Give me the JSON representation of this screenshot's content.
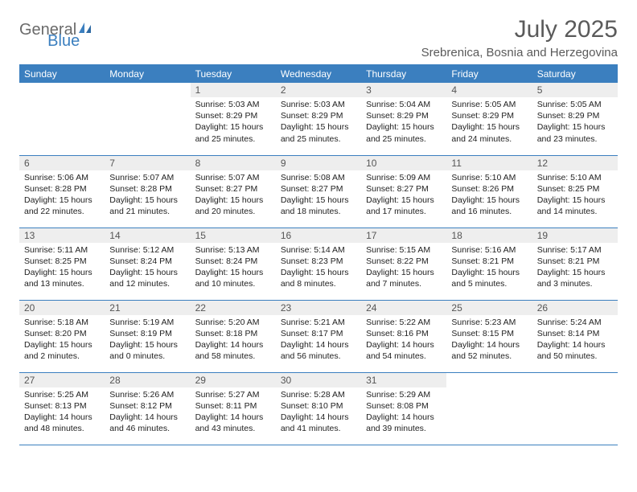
{
  "brand": {
    "part1": "General",
    "part2": "Blue",
    "text_color": "#6a6a6a",
    "accent_color": "#3b7fbf"
  },
  "title": "July 2025",
  "location": "Srebrenica, Bosnia and Herzegovina",
  "colors": {
    "header_bg": "#3b7fbf",
    "header_text": "#ffffff",
    "daynum_bg": "#eeeeee",
    "daynum_text": "#555555",
    "border": "#3b7fbf",
    "body_text": "#222222",
    "title_text": "#5a5a5a"
  },
  "day_headers": [
    "Sunday",
    "Monday",
    "Tuesday",
    "Wednesday",
    "Thursday",
    "Friday",
    "Saturday"
  ],
  "weeks": [
    [
      null,
      null,
      {
        "n": "1",
        "sunrise": "5:03 AM",
        "sunset": "8:29 PM",
        "daylight": "15 hours and 25 minutes."
      },
      {
        "n": "2",
        "sunrise": "5:03 AM",
        "sunset": "8:29 PM",
        "daylight": "15 hours and 25 minutes."
      },
      {
        "n": "3",
        "sunrise": "5:04 AM",
        "sunset": "8:29 PM",
        "daylight": "15 hours and 25 minutes."
      },
      {
        "n": "4",
        "sunrise": "5:05 AM",
        "sunset": "8:29 PM",
        "daylight": "15 hours and 24 minutes."
      },
      {
        "n": "5",
        "sunrise": "5:05 AM",
        "sunset": "8:29 PM",
        "daylight": "15 hours and 23 minutes."
      }
    ],
    [
      {
        "n": "6",
        "sunrise": "5:06 AM",
        "sunset": "8:28 PM",
        "daylight": "15 hours and 22 minutes."
      },
      {
        "n": "7",
        "sunrise": "5:07 AM",
        "sunset": "8:28 PM",
        "daylight": "15 hours and 21 minutes."
      },
      {
        "n": "8",
        "sunrise": "5:07 AM",
        "sunset": "8:27 PM",
        "daylight": "15 hours and 20 minutes."
      },
      {
        "n": "9",
        "sunrise": "5:08 AM",
        "sunset": "8:27 PM",
        "daylight": "15 hours and 18 minutes."
      },
      {
        "n": "10",
        "sunrise": "5:09 AM",
        "sunset": "8:27 PM",
        "daylight": "15 hours and 17 minutes."
      },
      {
        "n": "11",
        "sunrise": "5:10 AM",
        "sunset": "8:26 PM",
        "daylight": "15 hours and 16 minutes."
      },
      {
        "n": "12",
        "sunrise": "5:10 AM",
        "sunset": "8:25 PM",
        "daylight": "15 hours and 14 minutes."
      }
    ],
    [
      {
        "n": "13",
        "sunrise": "5:11 AM",
        "sunset": "8:25 PM",
        "daylight": "15 hours and 13 minutes."
      },
      {
        "n": "14",
        "sunrise": "5:12 AM",
        "sunset": "8:24 PM",
        "daylight": "15 hours and 12 minutes."
      },
      {
        "n": "15",
        "sunrise": "5:13 AM",
        "sunset": "8:24 PM",
        "daylight": "15 hours and 10 minutes."
      },
      {
        "n": "16",
        "sunrise": "5:14 AM",
        "sunset": "8:23 PM",
        "daylight": "15 hours and 8 minutes."
      },
      {
        "n": "17",
        "sunrise": "5:15 AM",
        "sunset": "8:22 PM",
        "daylight": "15 hours and 7 minutes."
      },
      {
        "n": "18",
        "sunrise": "5:16 AM",
        "sunset": "8:21 PM",
        "daylight": "15 hours and 5 minutes."
      },
      {
        "n": "19",
        "sunrise": "5:17 AM",
        "sunset": "8:21 PM",
        "daylight": "15 hours and 3 minutes."
      }
    ],
    [
      {
        "n": "20",
        "sunrise": "5:18 AM",
        "sunset": "8:20 PM",
        "daylight": "15 hours and 2 minutes."
      },
      {
        "n": "21",
        "sunrise": "5:19 AM",
        "sunset": "8:19 PM",
        "daylight": "15 hours and 0 minutes."
      },
      {
        "n": "22",
        "sunrise": "5:20 AM",
        "sunset": "8:18 PM",
        "daylight": "14 hours and 58 minutes."
      },
      {
        "n": "23",
        "sunrise": "5:21 AM",
        "sunset": "8:17 PM",
        "daylight": "14 hours and 56 minutes."
      },
      {
        "n": "24",
        "sunrise": "5:22 AM",
        "sunset": "8:16 PM",
        "daylight": "14 hours and 54 minutes."
      },
      {
        "n": "25",
        "sunrise": "5:23 AM",
        "sunset": "8:15 PM",
        "daylight": "14 hours and 52 minutes."
      },
      {
        "n": "26",
        "sunrise": "5:24 AM",
        "sunset": "8:14 PM",
        "daylight": "14 hours and 50 minutes."
      }
    ],
    [
      {
        "n": "27",
        "sunrise": "5:25 AM",
        "sunset": "8:13 PM",
        "daylight": "14 hours and 48 minutes."
      },
      {
        "n": "28",
        "sunrise": "5:26 AM",
        "sunset": "8:12 PM",
        "daylight": "14 hours and 46 minutes."
      },
      {
        "n": "29",
        "sunrise": "5:27 AM",
        "sunset": "8:11 PM",
        "daylight": "14 hours and 43 minutes."
      },
      {
        "n": "30",
        "sunrise": "5:28 AM",
        "sunset": "8:10 PM",
        "daylight": "14 hours and 41 minutes."
      },
      {
        "n": "31",
        "sunrise": "5:29 AM",
        "sunset": "8:08 PM",
        "daylight": "14 hours and 39 minutes."
      },
      null,
      null
    ]
  ],
  "labels": {
    "sunrise": "Sunrise:",
    "sunset": "Sunset:",
    "daylight": "Daylight:"
  }
}
